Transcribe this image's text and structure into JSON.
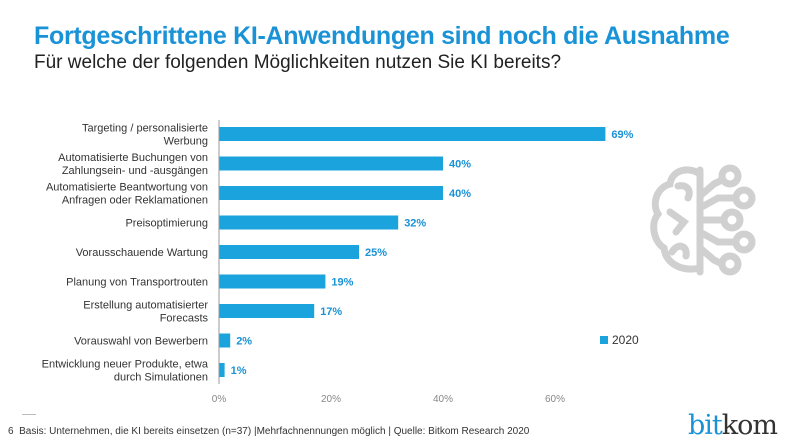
{
  "title": "Fortgeschrittene KI-Anwendungen sind noch die Ausnahme",
  "subtitle": "Für welche der folgenden Möglichkeiten nutzen Sie KI bereits?",
  "footer": {
    "page_number": "6",
    "note": "Basis: Unternehmen, die KI bereits einsetzen (n=37) |Mehrfachnennungen möglich | Quelle: Bitkom Research 2020"
  },
  "logo": {
    "part1": "bit",
    "part2": "kom"
  },
  "decoration": {
    "icon": "brain-circuit-icon",
    "color": "#d0d0d0"
  },
  "chart_data": {
    "type": "bar",
    "orientation": "horizontal",
    "categories": [
      [
        "Targeting / personalisierte",
        "Werbung"
      ],
      [
        "Automatisierte Buchungen von",
        "Zahlungsein- und -ausgängen"
      ],
      [
        "Automatisierte Beantwortung von",
        "Anfragen oder Reklamationen"
      ],
      [
        "Preisoptimierung"
      ],
      [
        "Vorausschauende Wartung"
      ],
      [
        "Planung von Transportrouten"
      ],
      [
        "Erstellung automatisierter",
        "Forecasts"
      ],
      [
        "Vorauswahl von Bewerbern"
      ],
      [
        "Entwicklung neuer Produkte, etwa",
        "durch Simulationen"
      ]
    ],
    "series": [
      {
        "name": "2020",
        "values": [
          69,
          40,
          40,
          32,
          25,
          19,
          17,
          2,
          1
        ],
        "color": "#1aa3dc"
      }
    ],
    "data_labels": [
      "69%",
      "40%",
      "40%",
      "32%",
      "25%",
      "19%",
      "17%",
      "2%",
      "1%"
    ],
    "xlim": [
      0,
      69
    ],
    "xticks": [
      0,
      20,
      40,
      60
    ],
    "xtick_labels": [
      "0%",
      "20%",
      "40%",
      "60%"
    ],
    "grid": false,
    "legend": "right"
  }
}
